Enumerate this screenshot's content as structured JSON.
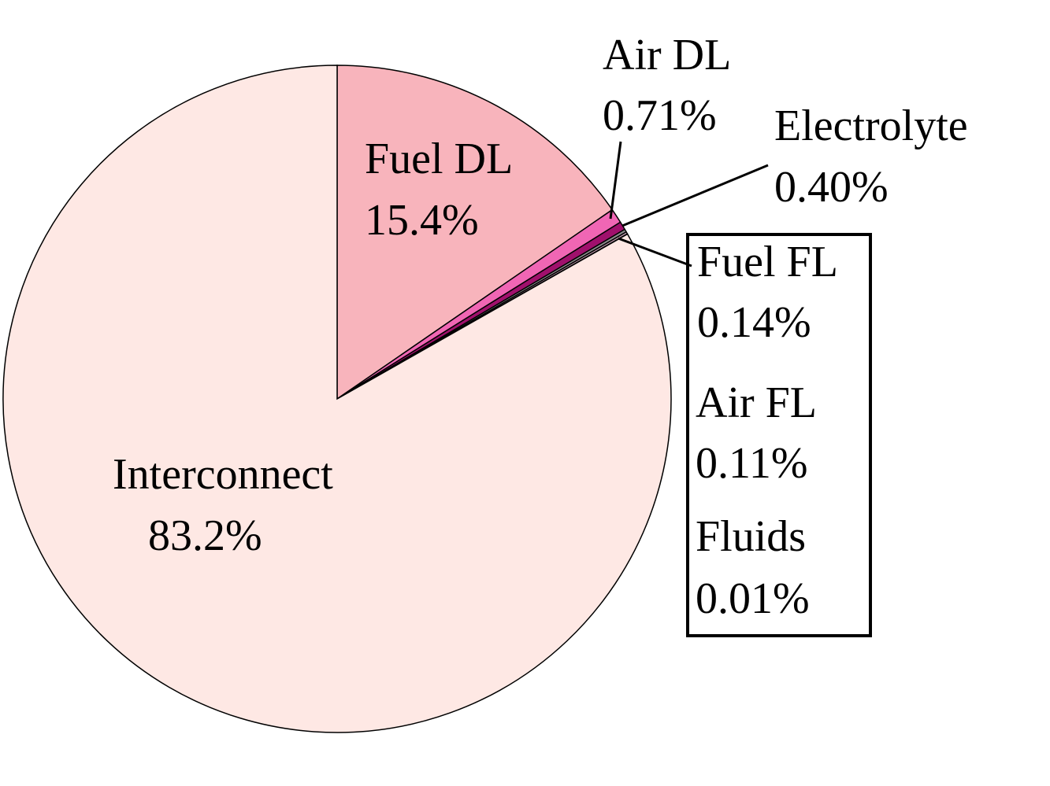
{
  "chart_data": {
    "type": "pie",
    "categories": [
      "Fuel DL",
      "Air DL",
      "Electrolyte",
      "Fuel FL",
      "Air FL",
      "Fluids",
      "Interconnect"
    ],
    "values": [
      15.4,
      0.71,
      0.4,
      0.14,
      0.11,
      0.01,
      83.2
    ],
    "value_labels": [
      "15.4%",
      "0.71%",
      "0.40%",
      "0.14%",
      "0.11%",
      "0.01%",
      "83.2%"
    ],
    "colors": [
      "#f8b4bc",
      "#f066b4",
      "#a0106c",
      "#8c8c8c",
      "#c8a0b4",
      "#ffffff",
      "#fee8e4"
    ]
  }
}
